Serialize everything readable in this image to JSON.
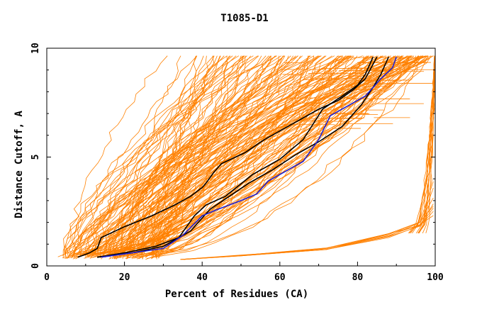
{
  "chart_data": {
    "type": "line",
    "title": "T1085-D1",
    "xlabel": "Percent of Residues (CA)",
    "ylabel": "Distance Cutoff, A",
    "xlim": [
      0,
      100
    ],
    "ylim": [
      0,
      10
    ],
    "x_ticks": [
      0,
      20,
      40,
      60,
      80,
      100
    ],
    "y_ticks": [
      0,
      5,
      10
    ],
    "grid": false,
    "legend": "none",
    "colors": {
      "bundle": "#ff8000",
      "highlight_black": "#000000",
      "highlight_blue": "#2020d0"
    },
    "highlight_series": [
      {
        "color": "#000000",
        "x": [
          8,
          11,
          13,
          14,
          20,
          27,
          33,
          37,
          40,
          41,
          43,
          45,
          51,
          56,
          64,
          70,
          75,
          79,
          82,
          85
        ],
        "y": [
          0.4,
          0.6,
          0.8,
          1.3,
          1.8,
          2.3,
          2.8,
          3.2,
          3.6,
          3.8,
          4.3,
          4.7,
          5.2,
          5.8,
          6.6,
          7.2,
          7.6,
          8.1,
          8.6,
          9.6
        ]
      },
      {
        "color": "#000000",
        "x": [
          13,
          20,
          28,
          34,
          38,
          41,
          46,
          53,
          60,
          66,
          71,
          76,
          80,
          82,
          84
        ],
        "y": [
          0.4,
          0.6,
          0.9,
          1.3,
          2.3,
          2.8,
          3.2,
          4.2,
          4.9,
          5.8,
          7.2,
          7.8,
          8.3,
          8.8,
          9.6
        ]
      },
      {
        "color": "#000000",
        "x": [
          13,
          22,
          30,
          37,
          42,
          47,
          52,
          58,
          64,
          70,
          76,
          81,
          84,
          86,
          88
        ],
        "y": [
          0.4,
          0.6,
          0.9,
          1.6,
          2.6,
          3.2,
          3.8,
          4.4,
          5.1,
          5.7,
          6.4,
          7.4,
          8.2,
          8.8,
          9.6
        ]
      },
      {
        "color": "#2020d0",
        "x": [
          14,
          22,
          30,
          35,
          40,
          44,
          50,
          54,
          57,
          62,
          66,
          70,
          73,
          78,
          82,
          86,
          89,
          90
        ],
        "y": [
          0.4,
          0.6,
          0.8,
          1.4,
          2.3,
          2.6,
          3.0,
          3.3,
          3.9,
          4.4,
          4.8,
          5.8,
          6.9,
          7.4,
          7.8,
          8.6,
          9.1,
          9.6
        ]
      }
    ]
  }
}
